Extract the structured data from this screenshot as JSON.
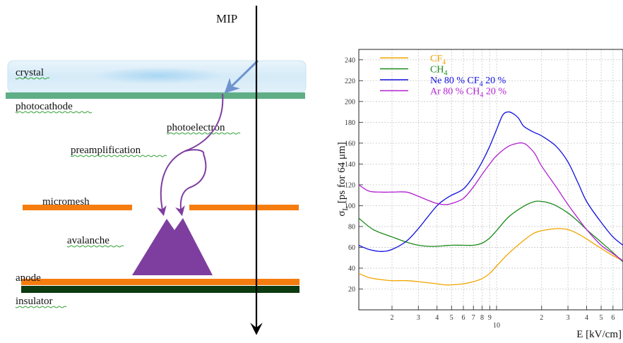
{
  "diagram": {
    "mip_label": "MIP",
    "labels": {
      "crystal": "crystal",
      "photocathode": "photocathode",
      "photoelectron": "photoelectron",
      "preamplification": "preamplification",
      "micromesh": "micromesh",
      "avalanche": "avalanche",
      "anode": "anode",
      "insulator": "insulator"
    },
    "colors": {
      "crystal": "#d8ecf8",
      "photocathode": "#5fae86",
      "mesh": "#f57d10",
      "anode": "#f57d10",
      "insulator": "#0d3a10",
      "avalanche": "#7e3e9f",
      "photon_arrow": "#6f93cf"
    }
  },
  "chart_data": {
    "type": "line",
    "ylabel_main": "σ",
    "ylabel_sub": "L",
    "ylabel_rest": " [ps for 64 μm]",
    "xlabel": "E [kV/cm]",
    "x_scale": "log",
    "xlim": [
      1.2,
      70
    ],
    "ylim": [
      0,
      250
    ],
    "grid": true,
    "legend_position": "top-left",
    "y_ticks": [
      "20",
      "40",
      "60",
      "80",
      "100",
      "120",
      "140",
      "160",
      "180",
      "200",
      "220",
      "240"
    ],
    "x_tick_labels": [
      "2",
      "3",
      "4",
      "5",
      "6",
      "7",
      "8",
      "9",
      "10",
      "2",
      "3",
      "4",
      "5",
      "6"
    ],
    "legend": [
      {
        "parts": [
          "CF",
          "4",
          ""
        ],
        "color": "#f0a500"
      },
      {
        "parts": [
          "CH",
          "4",
          ""
        ],
        "color": "#1a8a1a"
      },
      {
        "parts": [
          "Ne 80 % CF",
          "4",
          " 20 %"
        ],
        "color": "#1010e0"
      },
      {
        "parts": [
          "Ar 80 % CH",
          "4",
          " 20 %"
        ],
        "color": "#b020d0"
      }
    ],
    "series": [
      {
        "color": "#f0a500",
        "x": [
          1.2,
          1.4,
          1.7,
          2,
          2.5,
          3,
          3.5,
          4,
          4.5,
          5,
          6,
          7,
          8,
          9,
          10,
          12,
          15,
          18,
          22,
          26,
          30,
          35,
          40,
          50,
          60,
          70
        ],
        "y": [
          35,
          31,
          29,
          28,
          28,
          27,
          26,
          25,
          24,
          24,
          25,
          27,
          30,
          35,
          42,
          54,
          66,
          74,
          77,
          78,
          77,
          73,
          68,
          59,
          52,
          47
        ]
      },
      {
        "color": "#1a8a1a",
        "x": [
          1.2,
          1.5,
          2,
          2.5,
          3,
          3.5,
          4,
          5,
          6,
          7,
          8,
          9,
          10,
          12,
          15,
          18,
          20,
          22,
          25,
          30,
          35,
          40,
          50,
          60,
          70
        ],
        "y": [
          88,
          77,
          70,
          65,
          62,
          61,
          61,
          62,
          62,
          62,
          64,
          69,
          76,
          89,
          99,
          104,
          104,
          103,
          100,
          93,
          85,
          77,
          65,
          55,
          46
        ]
      },
      {
        "color": "#1010e0",
        "x": [
          1.2,
          1.4,
          1.7,
          2,
          2.5,
          3,
          3.5,
          4,
          4.5,
          5,
          6,
          7,
          8,
          9,
          10,
          11,
          12,
          13,
          14,
          15,
          16,
          18,
          20,
          25,
          30,
          35,
          40,
          50,
          60,
          70
        ],
        "y": [
          62,
          58,
          56,
          58,
          66,
          78,
          90,
          100,
          106,
          110,
          116,
          128,
          142,
          157,
          173,
          187,
          190,
          188,
          184,
          177,
          174,
          170,
          167,
          157,
          142,
          122,
          104,
          84,
          70,
          62
        ]
      },
      {
        "color": "#b020d0",
        "x": [
          1.2,
          1.4,
          1.7,
          2,
          2.5,
          3,
          3.5,
          4,
          4.5,
          5,
          6,
          7,
          8,
          9,
          10,
          12,
          14,
          15,
          16,
          18,
          20,
          25,
          30,
          35,
          40,
          50,
          60,
          70
        ],
        "y": [
          120,
          114,
          113,
          113,
          113,
          109,
          105,
          102,
          101,
          102,
          107,
          118,
          130,
          140,
          148,
          157,
          160,
          160,
          158,
          150,
          138,
          118,
          101,
          88,
          77,
          62,
          54,
          47
        ]
      }
    ]
  }
}
